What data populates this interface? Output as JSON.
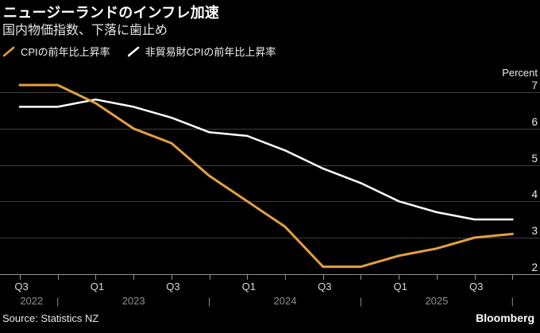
{
  "header": {
    "title": "ニュージーランドのインフレ加速",
    "subtitle": "国内物価指数、下落に歯止め"
  },
  "legend": {
    "items": [
      {
        "label": "CPIの前年比上昇率",
        "color": "#E5A03E",
        "icon": "orange-slash-icon"
      },
      {
        "label": "非貿易財CPIの前年比上昇率",
        "color": "#FFFFFF",
        "icon": "white-slash-icon"
      }
    ]
  },
  "footer": {
    "source": "Source: Statistics NZ",
    "brand": "Bloomberg"
  },
  "colors": {
    "background": "#000000",
    "grid": "#3D3D3D",
    "axis": "#929292",
    "ytick_text": "#EAEAEA",
    "quarter_label": "#DADADA",
    "year_label": "#8F8F8F",
    "cpi_line": "#E5A03E",
    "non_tradable_line": "#FFFFFF"
  },
  "chart_data": {
    "type": "line",
    "title": "ニュージーランドのインフレ加速",
    "subtitle": "国内物価指数、下落に歯止め",
    "unit_label": "Percent",
    "categories": [
      "2022 Q3",
      "2022 Q4",
      "2023 Q1",
      "2023 Q2",
      "2023 Q3",
      "2023 Q4",
      "2024 Q1",
      "2024 Q2",
      "2024 Q3",
      "2024 Q4",
      "2025 Q1",
      "2025 Q2",
      "2025 Q3",
      "2025 Q4"
    ],
    "x_tick_labels": [
      "Q3",
      "",
      "Q1",
      "",
      "Q3",
      "",
      "Q1",
      "",
      "Q3",
      "",
      "Q1",
      "",
      "Q3",
      ""
    ],
    "year_labels": [
      "2022",
      "2023",
      "2024",
      "2025"
    ],
    "year_separator_indices": [
      1,
      5,
      9,
      13
    ],
    "series": [
      {
        "name": "CPIの前年比上昇率",
        "color": "#E5A03E",
        "values": [
          7.2,
          7.2,
          6.7,
          6.0,
          5.6,
          4.7,
          4.0,
          3.3,
          2.2,
          2.2,
          2.5,
          2.7,
          3.0,
          3.1
        ]
      },
      {
        "name": "非貿易財CPIの前年比上昇率",
        "color": "#FFFFFF",
        "values": [
          6.6,
          6.6,
          6.8,
          6.6,
          6.3,
          5.9,
          5.8,
          5.4,
          4.9,
          4.5,
          4.0,
          3.7,
          3.5,
          3.5
        ]
      }
    ],
    "ylim": [
      2,
      7
    ],
    "yticks": [
      2,
      3,
      4,
      5,
      6,
      7
    ],
    "grid": "horizontal",
    "legend_position": "top",
    "source": "Source: Statistics NZ",
    "brand": "Bloomberg"
  }
}
